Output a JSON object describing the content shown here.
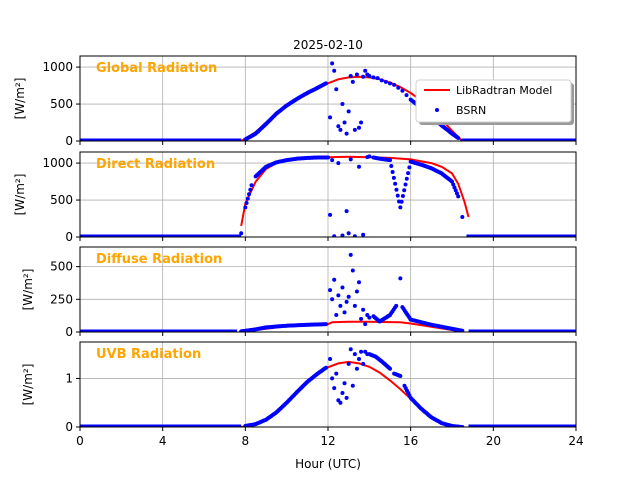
{
  "title": "2025-02-10",
  "colors": {
    "model": "#ff0000",
    "obs": "#0000ff",
    "panel_label": "#ffa500",
    "grid": "#b0b0b0"
  },
  "chart_data": [
    {
      "type": "line",
      "panel_label": "Global Radiation",
      "ylabel": "[W/m²]",
      "x_unit": "hour (UTC)",
      "xlim": [
        0,
        24
      ],
      "ylim": [
        0,
        1150
      ],
      "yticks": [
        0,
        500,
        1000
      ],
      "grid": true,
      "legend": {
        "placement": "right",
        "entries": [
          "LibRadtran Model",
          "BSRN"
        ]
      },
      "series": [
        {
          "name": "LibRadtran Model",
          "style": "line",
          "x": [
            7.8,
            8.5,
            9,
            10,
            11,
            12,
            12.5,
            13,
            13.5,
            14,
            14.5,
            15,
            15.5,
            16,
            16.5,
            17,
            17.5,
            18,
            18.5
          ],
          "y": [
            0,
            120,
            250,
            480,
            650,
            780,
            835,
            860,
            870,
            860,
            835,
            790,
            730,
            650,
            550,
            430,
            290,
            140,
            0
          ]
        },
        {
          "name": "BSRN",
          "style": "points",
          "baseline_hours": [
            [
              0,
              7.8
            ],
            [
              18.5,
              24
            ]
          ],
          "x": [
            8,
            8.5,
            9,
            9.5,
            10,
            10.5,
            11,
            11.5,
            11.9,
            12.1,
            12.2,
            12.3,
            12.4,
            12.5,
            12.6,
            12.7,
            12.8,
            12.9,
            13,
            13.1,
            13.2,
            13.3,
            13.4,
            13.5,
            13.6,
            13.7,
            13.8,
            13.9,
            14,
            14.2,
            14.4,
            14.6,
            14.8,
            15,
            15.2,
            15.4,
            15.6,
            15.8,
            16,
            16.5,
            17,
            17.5,
            18,
            18.3,
            18.5
          ],
          "y": [
            20,
            100,
            230,
            370,
            480,
            570,
            650,
            720,
            780,
            320,
            1050,
            950,
            700,
            200,
            150,
            500,
            250,
            100,
            400,
            880,
            800,
            150,
            900,
            180,
            250,
            870,
            950,
            900,
            880,
            860,
            850,
            820,
            800,
            780,
            760,
            720,
            680,
            620,
            560,
            450,
            330,
            210,
            100,
            40,
            5
          ]
        }
      ]
    },
    {
      "type": "line",
      "panel_label": "Direct Radiation",
      "ylabel": "[W/m²]",
      "xlim": [
        0,
        24
      ],
      "ylim": [
        0,
        1150
      ],
      "yticks": [
        0,
        500,
        1000
      ],
      "grid": true,
      "series": [
        {
          "name": "LibRadtran Model",
          "style": "line",
          "x": [
            7.8,
            8,
            8.5,
            9,
            9.5,
            10,
            11,
            12,
            13,
            14,
            15,
            16,
            17,
            17.5,
            18,
            18.3,
            18.6,
            18.8
          ],
          "y": [
            150,
            450,
            750,
            920,
            1000,
            1040,
            1070,
            1080,
            1085,
            1080,
            1070,
            1050,
            1000,
            950,
            860,
            720,
            480,
            270
          ]
        },
        {
          "name": "BSRN",
          "style": "points",
          "baseline_hours": [
            [
              0,
              7.8
            ],
            [
              18.7,
              24
            ]
          ],
          "x": [
            7.8,
            8,
            8.3,
            8.5,
            9,
            9.5,
            10,
            10.5,
            11,
            11.5,
            12,
            12.1,
            12.2,
            12.3,
            12.5,
            12.7,
            12.9,
            13,
            13.1,
            13.3,
            13.5,
            13.7,
            13.9,
            14,
            14.2,
            14.5,
            15,
            15.5,
            16,
            16.5,
            17,
            17.5,
            18,
            18.3,
            18.5
          ],
          "y": [
            50,
            400,
            700,
            820,
            950,
            1010,
            1040,
            1060,
            1070,
            1075,
            1075,
            300,
            1040,
            10,
            1000,
            20,
            350,
            50,
            1050,
            10,
            950,
            30,
            1080,
            1090,
            1075,
            1060,
            1040,
            400,
            1020,
            980,
            930,
            860,
            750,
            550,
            270
          ]
        }
      ]
    },
    {
      "type": "line",
      "panel_label": "Diffuse Radiation",
      "ylabel": "[W/m²]",
      "xlim": [
        0,
        24
      ],
      "ylim": [
        0,
        650
      ],
      "yticks": [
        0,
        250,
        500
      ],
      "grid": true,
      "series": [
        {
          "name": "LibRadtran Model",
          "style": "line",
          "x": [
            7.8,
            9,
            10,
            11,
            12,
            12.2,
            13,
            14,
            15,
            15.5,
            16,
            17,
            18,
            18.5
          ],
          "y": [
            0,
            25,
            45,
            55,
            60,
            75,
            78,
            78,
            76,
            74,
            65,
            40,
            15,
            0
          ]
        },
        {
          "name": "BSRN",
          "style": "points",
          "baseline_hours": [
            [
              0,
              7.6
            ],
            [
              18.8,
              24
            ]
          ],
          "x": [
            7.8,
            8.5,
            9,
            9.5,
            10,
            11,
            11.9,
            12.1,
            12.2,
            12.3,
            12.4,
            12.5,
            12.6,
            12.7,
            12.8,
            12.9,
            13,
            13.1,
            13.2,
            13.3,
            13.4,
            13.5,
            13.6,
            13.7,
            13.8,
            13.9,
            14,
            14.2,
            14.5,
            15,
            15.3,
            15.5,
            15.6,
            16,
            16.5,
            17,
            17.5,
            18,
            18.5
          ],
          "y": [
            5,
            20,
            35,
            42,
            48,
            55,
            60,
            320,
            250,
            400,
            130,
            280,
            200,
            340,
            150,
            230,
            270,
            590,
            470,
            200,
            310,
            380,
            100,
            170,
            60,
            130,
            110,
            120,
            80,
            130,
            200,
            410,
            190,
            95,
            75,
            55,
            40,
            25,
            10
          ]
        }
      ]
    },
    {
      "type": "line",
      "panel_label": "UVB Radiation",
      "ylabel": "[W/m²]",
      "xlabel": "Hour (UTC)",
      "xlim": [
        0,
        24
      ],
      "xticks": [
        0,
        4,
        8,
        12,
        16,
        20,
        24
      ],
      "ylim": [
        0,
        1.75
      ],
      "yticks": [
        0,
        1
      ],
      "grid": true,
      "series": [
        {
          "name": "LibRadtran Model",
          "style": "line",
          "x": [
            7.8,
            8.5,
            9,
            9.5,
            10,
            10.5,
            11,
            11.5,
            12,
            12.5,
            13,
            13.5,
            14,
            14.5,
            15,
            15.5,
            16,
            16.5,
            17,
            17.5,
            18,
            18.5
          ],
          "y": [
            0,
            0.05,
            0.15,
            0.3,
            0.5,
            0.72,
            0.93,
            1.1,
            1.23,
            1.31,
            1.34,
            1.31,
            1.24,
            1.12,
            0.96,
            0.78,
            0.58,
            0.38,
            0.2,
            0.08,
            0.02,
            0
          ]
        },
        {
          "name": "BSRN",
          "style": "points",
          "baseline_hours": [
            [
              0,
              7.8
            ],
            [
              18.8,
              24
            ]
          ],
          "x": [
            8,
            8.5,
            9,
            9.5,
            10,
            10.5,
            11,
            11.5,
            11.9,
            12.1,
            12.2,
            12.3,
            12.4,
            12.5,
            12.6,
            12.7,
            12.8,
            12.9,
            13,
            13.1,
            13.2,
            13.3,
            13.4,
            13.5,
            13.6,
            13.7,
            13.8,
            13.9,
            14,
            14.3,
            14.6,
            15,
            15.2,
            15.5,
            15.7,
            16,
            16.5,
            17,
            17.5,
            18,
            18.5
          ],
          "y": [
            0.02,
            0.06,
            0.15,
            0.3,
            0.5,
            0.72,
            0.93,
            1.1,
            1.22,
            1.4,
            1.0,
            0.8,
            1.1,
            0.55,
            0.5,
            0.7,
            0.9,
            0.6,
            1.3,
            1.6,
            0.85,
            1.5,
            1.2,
            1.4,
            1.55,
            1.3,
            1.55,
            1.5,
            1.5,
            1.45,
            1.35,
            1.2,
            1.1,
            1.05,
            0.85,
            0.6,
            0.38,
            0.2,
            0.08,
            0.02,
            0
          ]
        }
      ]
    }
  ]
}
